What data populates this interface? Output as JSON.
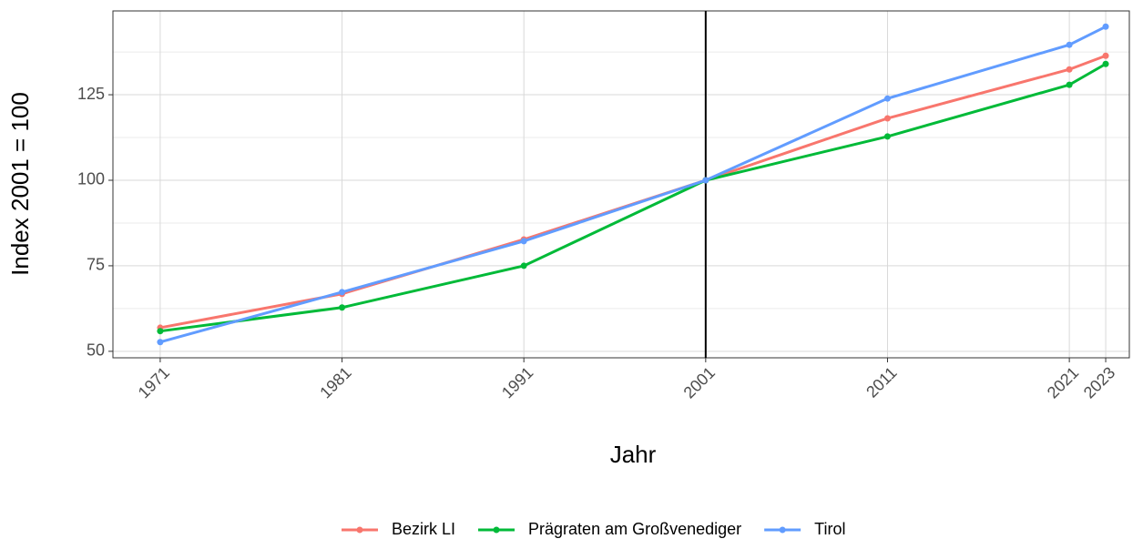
{
  "chart_data": {
    "type": "line",
    "x_label": "Jahr",
    "y_label": "Index 2001 = 100",
    "x": [
      1971,
      1981,
      1991,
      2001,
      2011,
      2021,
      2023
    ],
    "series": [
      {
        "name": "Bezirk LI",
        "color": "#F8766D",
        "values": [
          56.9,
          66.8,
          82.7,
          100,
          118.1,
          132.4,
          136.4
        ]
      },
      {
        "name": "Prägraten am Großvenediger",
        "color": "#00BA38",
        "values": [
          55.9,
          62.8,
          75,
          100,
          112.8,
          127.9,
          134
        ]
      },
      {
        "name": "Tirol",
        "color": "#619CFF",
        "values": [
          52.7,
          67.3,
          82.2,
          100,
          123.9,
          139.6,
          144.9
        ]
      }
    ],
    "xlim": [
      1968.4,
      2024.3
    ],
    "ylim": [
      48.1,
      149.5
    ],
    "xticks": [
      1971,
      1981,
      1991,
      2001,
      2011,
      2021,
      2023
    ],
    "yticks": [
      50,
      75,
      100,
      125
    ],
    "minor_yticks": [
      62.5,
      87.5,
      112.5,
      137.5
    ],
    "vline": 2001,
    "grid": true,
    "legend": "bottom"
  }
}
